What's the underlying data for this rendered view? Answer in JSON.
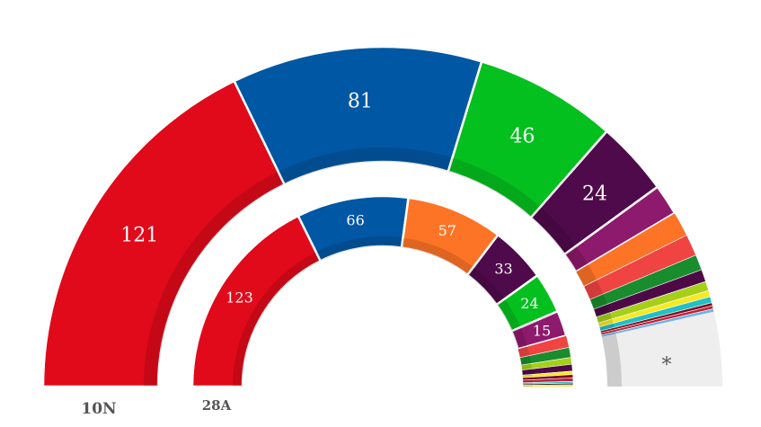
{
  "chart_data": {
    "type": "pie",
    "rings": [
      {
        "label": "10N",
        "other_label": "*",
        "other_value": 24,
        "slices": [
          {
            "value": 121,
            "label": "121",
            "color": "#e00a1a"
          },
          {
            "value": 81,
            "label": "81",
            "color": "#0057a3"
          },
          {
            "value": 46,
            "label": "46",
            "color": "#04c01f"
          },
          {
            "value": 24,
            "label": "24",
            "color": "#4f0a4b"
          },
          {
            "value": 10,
            "label": "",
            "color": "#8d1a6c"
          },
          {
            "value": 8,
            "label": "",
            "color": "#fd7426"
          },
          {
            "value": 7,
            "label": "",
            "color": "#f04442"
          },
          {
            "value": 5,
            "label": "",
            "color": "#198c2d"
          },
          {
            "value": 4,
            "label": "",
            "color": "#4d0a47"
          },
          {
            "value": 3,
            "label": "",
            "color": "#a5cf19"
          },
          {
            "value": 2,
            "label": "",
            "color": "#f7e923"
          },
          {
            "value": 2,
            "label": "",
            "color": "#21c0c6"
          },
          {
            "value": 1,
            "label": "",
            "color": "#7b1020"
          },
          {
            "value": 1,
            "label": "",
            "color": "#c21e3a"
          },
          {
            "value": 1,
            "label": "",
            "color": "#6bb3e8"
          }
        ]
      },
      {
        "label": "28A",
        "slices": [
          {
            "value": 123,
            "label": "123",
            "color": "#e00a1a"
          },
          {
            "value": 66,
            "label": "66",
            "color": "#0057a3"
          },
          {
            "value": 57,
            "label": "57",
            "color": "#fd7426"
          },
          {
            "value": 33,
            "label": "33",
            "color": "#4f0a4b"
          },
          {
            "value": 24,
            "label": "24",
            "color": "#04c01f"
          },
          {
            "value": 15,
            "label": "15",
            "color": "#8d1a6c"
          },
          {
            "value": 7,
            "label": "",
            "color": "#f04442"
          },
          {
            "value": 6,
            "label": "",
            "color": "#198c2d"
          },
          {
            "value": 4,
            "label": "",
            "color": "#a5cf19"
          },
          {
            "value": 4,
            "label": "",
            "color": "#4d0a47"
          },
          {
            "value": 2,
            "label": "",
            "color": "#f7e923"
          },
          {
            "value": 2,
            "label": "",
            "color": "#7b1020"
          },
          {
            "value": 2,
            "label": "",
            "color": "#c21e3a"
          },
          {
            "value": 1,
            "label": "",
            "color": "#21c0c6"
          },
          {
            "value": 1,
            "label": "",
            "color": "#222222"
          },
          {
            "value": 1,
            "label": "",
            "color": "#ffd400"
          }
        ]
      }
    ]
  }
}
